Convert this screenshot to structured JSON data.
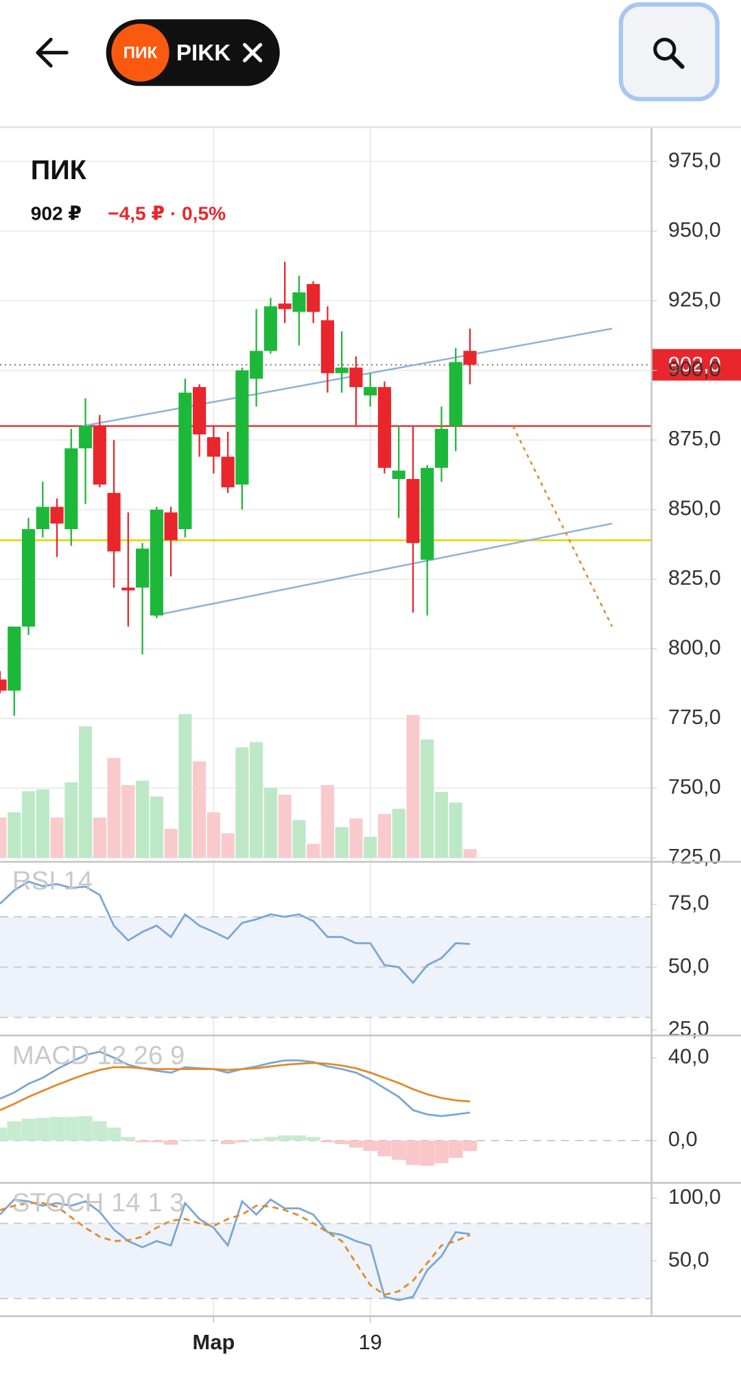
{
  "header": {
    "logo": "ПИК",
    "ticker": "PIKK"
  },
  "chart_data": [
    {
      "type": "candlestick",
      "title": "ПИК",
      "price_label": "902 ₽",
      "change_label": "−4,5 ₽ · 0,5%",
      "categories": [
        null,
        null,
        null,
        null,
        null,
        null,
        null,
        null,
        null,
        null,
        null,
        null,
        null,
        null,
        null,
        "Мар",
        null,
        null,
        null,
        null,
        null,
        null,
        null,
        null,
        null,
        null,
        "19",
        null,
        null,
        null,
        null,
        null,
        null,
        null
      ],
      "open": [
        789,
        785,
        808,
        843,
        851,
        843,
        872,
        880,
        856,
        822,
        822,
        812,
        849,
        843,
        894,
        876,
        869,
        859,
        897,
        907,
        924,
        921,
        931,
        918,
        899,
        901,
        891,
        894,
        861,
        861,
        832,
        865,
        880,
        907
      ],
      "high": [
        792,
        808,
        847,
        860,
        854,
        879,
        890,
        884,
        875,
        849,
        838,
        851,
        851,
        897,
        895,
        880,
        878,
        901,
        922,
        926,
        939,
        934,
        932,
        923,
        914,
        905,
        899,
        896,
        880,
        880,
        866,
        887,
        908,
        915
      ],
      "low": [
        784,
        776,
        805,
        840,
        833,
        837,
        852,
        858,
        822,
        808,
        798,
        811,
        826,
        840,
        869,
        863,
        856,
        850,
        887,
        906,
        917,
        909,
        917,
        892,
        892,
        880,
        887,
        863,
        847,
        813,
        812,
        860,
        871,
        895
      ],
      "close": [
        785,
        808,
        843,
        851,
        845,
        872,
        880,
        859,
        835,
        821,
        836,
        850,
        839,
        892,
        877,
        869,
        858,
        900,
        907,
        923,
        922,
        928,
        921,
        899,
        901,
        894,
        894,
        865,
        864,
        838,
        865,
        879,
        903,
        902
      ],
      "volume": [
        46,
        52,
        76,
        78,
        46,
        86,
        150,
        46,
        114,
        83,
        88,
        70,
        33,
        164,
        110,
        52,
        28,
        126,
        132,
        80,
        72,
        43,
        16,
        83,
        35,
        45,
        24,
        50,
        56,
        163,
        135,
        75,
        63,
        10
      ],
      "up_color": "#1db83a",
      "down_color": "#e8262c",
      "volume_up_color": "#bde8c6",
      "volume_down_color": "#f9cacc",
      "xlim": [
        0,
        45.75
      ],
      "ylim": [
        723.7,
        987
      ],
      "yticks": [
        {
          "value": 725,
          "label": "725,0"
        },
        {
          "value": 750,
          "label": "750,0"
        },
        {
          "value": 775,
          "label": "775,0"
        },
        {
          "value": 800,
          "label": "800,0"
        },
        {
          "value": 825,
          "label": "825,0"
        },
        {
          "value": 850,
          "label": "850,0"
        },
        {
          "value": 875,
          "label": "875,0"
        },
        {
          "value": 900,
          "label": "900,0"
        },
        {
          "value": 925,
          "label": "925,0"
        },
        {
          "value": 950,
          "label": "950,0"
        },
        {
          "value": 975,
          "label": "975,0"
        }
      ],
      "grid": true,
      "last_price": {
        "value": 902,
        "label": "902,0",
        "color": "#e8262c"
      },
      "hlines": [
        {
          "value": 880,
          "color": "#d8403e"
        },
        {
          "value": 839,
          "color": "#e6d200"
        }
      ],
      "lines": [
        {
          "x": [
            5.79,
            42.98
          ],
          "y": [
            880,
            915
          ],
          "color": "#8fb3db",
          "dash": false
        },
        {
          "x": [
            10.84,
            42.98
          ],
          "y": [
            812,
            845
          ],
          "color": "#8fb3db",
          "dash": false
        },
        {
          "x": [
            36.02,
            42.98
          ],
          "y": [
            880,
            808
          ],
          "color": "#e08a2a",
          "dash": true
        }
      ]
    },
    {
      "type": "line",
      "title": "RSI 14",
      "ylim": [
        23,
        91.7
      ],
      "yticks": [
        {
          "value": 75,
          "label": "75,0"
        },
        {
          "value": 50,
          "label": "50,0"
        },
        {
          "value": 25,
          "label": "25,0"
        }
      ],
      "levels": [
        70,
        50,
        30
      ],
      "band": [
        30,
        70
      ],
      "series": [
        {
          "color": "#7aa6d6",
          "dash": false,
          "values": [
            75.2,
            80.5,
            84,
            82.2,
            83,
            81.5,
            82,
            78.7,
            66.5,
            60.6,
            64,
            66.5,
            62,
            71,
            66.5,
            64,
            61.3,
            67.6,
            69,
            71,
            70,
            71,
            68.3,
            62,
            62,
            59.5,
            59.5,
            50.8,
            50,
            43.8,
            50.8,
            53.6,
            59.5,
            59.2
          ]
        }
      ]
    },
    {
      "type": "macd",
      "title": "MACD 12 26 9",
      "ylim": [
        -20.2,
        50.1
      ],
      "yticks": [
        {
          "value": 40,
          "label": "40,0"
        },
        {
          "value": 0,
          "label": "0,0"
        }
      ],
      "levels": [
        0
      ],
      "series": [
        {
          "color": "#7aa6d6",
          "dash": false,
          "values": [
            20.2,
            23.2,
            27.4,
            30.3,
            34.5,
            37.9,
            41.3,
            42.9,
            40,
            36.6,
            34.9,
            33.7,
            32.8,
            35.4,
            34.9,
            34.5,
            32.8,
            34.5,
            35.8,
            37.5,
            38.7,
            38.7,
            37.9,
            35.8,
            34.5,
            32.8,
            29.5,
            25.3,
            21.1,
            14.7,
            12.6,
            11.8,
            12.6,
            13.5
          ]
        },
        {
          "color": "#e08a2a",
          "dash": false,
          "values": [
            14.7,
            17.7,
            21.1,
            24,
            26.9,
            29.5,
            32,
            34.1,
            35.4,
            35.4,
            34.9,
            34.5,
            34.5,
            34.5,
            34.5,
            34.5,
            34.1,
            34.5,
            34.9,
            35.8,
            36.6,
            37.1,
            37.5,
            37.1,
            36.2,
            34.9,
            32.8,
            30.3,
            27.8,
            24.8,
            22.3,
            20.6,
            19.4,
            18.9
          ]
        }
      ],
      "histogram": [
        6.3,
        9.3,
        10.5,
        11,
        11.4,
        11.4,
        11.8,
        9.3,
        6.3,
        1.7,
        -0.8,
        -0.8,
        -2,
        0.4,
        0.4,
        0,
        -1.7,
        -0.8,
        0.8,
        1.7,
        2.5,
        2.5,
        1.7,
        -0.8,
        -1.7,
        -3.4,
        -5,
        -7.6,
        -9.3,
        -11.8,
        -12.2,
        -10.9,
        -8.4,
        -5
      ],
      "histogram_up_color": "#c6ebcf",
      "histogram_down_color": "#f9c6c9"
    },
    {
      "type": "line",
      "title": "STOCH 14 1 3",
      "ylim": [
        6.3,
        111.3
      ],
      "yticks": [
        {
          "value": 100,
          "label": "100,0"
        },
        {
          "value": 50,
          "label": "50,0"
        }
      ],
      "levels": [
        80,
        20
      ],
      "band": [
        20,
        80
      ],
      "series": [
        {
          "color": "#7aa6d6",
          "dash": false,
          "values": [
            87,
            99,
            97.6,
            94.1,
            96.2,
            94.1,
            97.6,
            89.2,
            75.1,
            65.9,
            61,
            65.9,
            62.4,
            96.2,
            83.5,
            76.5,
            62.4,
            97.6,
            87,
            99,
            92,
            92,
            87,
            73,
            70.8,
            65.9,
            62.4,
            21.5,
            18.7,
            21.5,
            42.7,
            53.9,
            73,
            71.5
          ]
        },
        {
          "color": "#e08a2a",
          "dash": true,
          "values": [
            90.6,
            94.1,
            96.2,
            96.2,
            93.4,
            84.9,
            76.5,
            69.4,
            65.9,
            66.6,
            69.4,
            76.5,
            82.1,
            83.5,
            80,
            77.9,
            83.5,
            87,
            94.1,
            93.4,
            90.6,
            86.3,
            80,
            73,
            65.9,
            48.3,
            30.7,
            23,
            25.8,
            34.2,
            48.3,
            62.4,
            65.9,
            70.8
          ]
        }
      ]
    }
  ]
}
